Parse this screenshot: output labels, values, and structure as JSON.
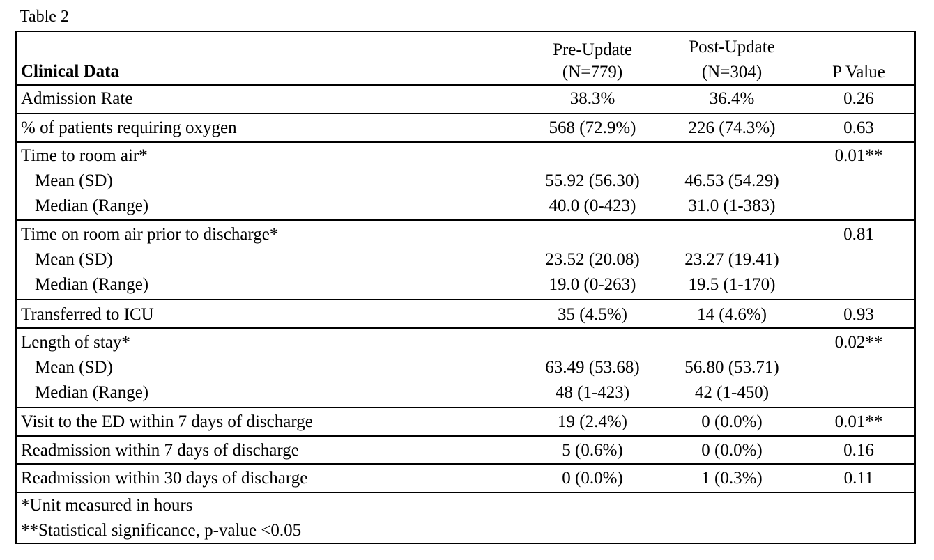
{
  "caption": "Table 2",
  "header": {
    "col1": "Clinical Data",
    "col2_line1": "Pre-Update",
    "col2_line2": "(N=779)",
    "col3_line1": "Post-Update",
    "col3_line2": "(N=304)",
    "col4": "P Value"
  },
  "rows": [
    {
      "label": "Admission Rate",
      "pre": "38.3%",
      "post": "36.4%",
      "p": "0.26"
    },
    {
      "label": "% of patients requiring oxygen",
      "pre": "568 (72.9%)",
      "post": "226 (74.3%)",
      "p": "0.63"
    },
    {
      "label": "Time to room air*",
      "p": "0.01**",
      "sub": [
        {
          "label": "Mean (SD)",
          "pre": "55.92 (56.30)",
          "post": "46.53 (54.29)"
        },
        {
          "label": "Median (Range)",
          "pre": "40.0 (0-423)",
          "post": "31.0 (1-383)"
        }
      ]
    },
    {
      "label": "Time on room air prior to discharge*",
      "p": "0.81",
      "sub": [
        {
          "label": "Mean (SD)",
          "pre": "23.52 (20.08)",
          "post": "23.27 (19.41)"
        },
        {
          "label": "Median (Range)",
          "pre": "19.0 (0-263)",
          "post": "19.5 (1-170)"
        }
      ]
    },
    {
      "label": "Transferred to ICU",
      "pre": "35 (4.5%)",
      "post": "14 (4.6%)",
      "p": "0.93"
    },
    {
      "label": "Length of stay*",
      "p": "0.02**",
      "sub": [
        {
          "label": "Mean (SD)",
          "pre": "63.49 (53.68)",
          "post": "56.80 (53.71)"
        },
        {
          "label": "Median (Range)",
          "pre": "48 (1-423)",
          "post": "42 (1-450)"
        }
      ]
    },
    {
      "label": "Visit to the ED within 7 days of discharge",
      "pre": "19 (2.4%)",
      "post": "0 (0.0%)",
      "p": "0.01**"
    },
    {
      "label": "Readmission within 7 days of discharge",
      "pre": "5 (0.6%)",
      "post": "0 (0.0%)",
      "p": "0.16"
    },
    {
      "label": "Readmission within 30 days of discharge",
      "pre": "0 (0.0%)",
      "post": "1 (0.3%)",
      "p": "0.11"
    }
  ],
  "footnotes": [
    "*Unit measured in hours",
    "**Statistical significance, p-value <0.05"
  ]
}
